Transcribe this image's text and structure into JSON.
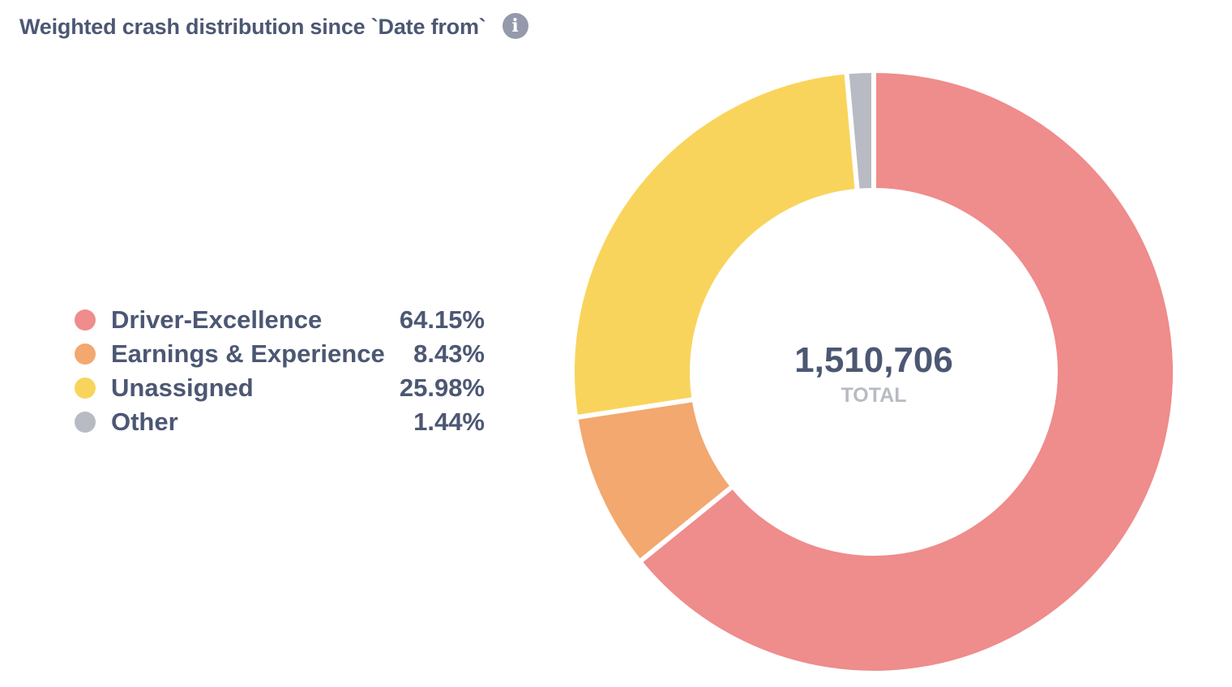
{
  "card": {
    "title": "Weighted crash distribution since `Date from`",
    "info_icon": "info-icon"
  },
  "chart_data": {
    "type": "pie",
    "variant": "donut",
    "title": "Weighted crash distribution since `Date from`",
    "total": {
      "value": "1,510,706",
      "label": "TOTAL"
    },
    "legend_position": "left",
    "slices": [
      {
        "name": "Driver-Excellence",
        "percent_label": "64.15%",
        "value": 64.15,
        "color": "#ef8c8c"
      },
      {
        "name": "Earnings & Experience",
        "percent_label": "8.43%",
        "value": 8.43,
        "color": "#f2a86f"
      },
      {
        "name": "Unassigned",
        "percent_label": "25.98%",
        "value": 25.98,
        "color": "#f9d45c"
      },
      {
        "name": "Other",
        "percent_label": "1.44%",
        "value": 1.44,
        "color": "#b8bbc3"
      }
    ]
  }
}
